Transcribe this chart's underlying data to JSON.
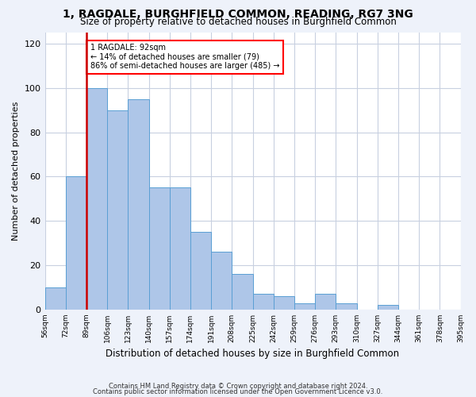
{
  "title_line1": "1, RAGDALE, BURGHFIELD COMMON, READING, RG7 3NG",
  "title_line2": "Size of property relative to detached houses in Burghfield Common",
  "xlabel": "Distribution of detached houses by size in Burghfield Common",
  "ylabel": "Number of detached properties",
  "bin_edges": [
    "56sqm",
    "72sqm",
    "89sqm",
    "106sqm",
    "123sqm",
    "140sqm",
    "157sqm",
    "174sqm",
    "191sqm",
    "208sqm",
    "225sqm",
    "242sqm",
    "259sqm",
    "276sqm",
    "293sqm",
    "310sqm",
    "327sqm",
    "344sqm",
    "361sqm",
    "378sqm",
    "395sqm"
  ],
  "bar_heights": [
    10,
    60,
    100,
    90,
    95,
    55,
    55,
    35,
    26,
    16,
    7,
    6,
    3,
    7,
    3,
    0,
    2,
    0,
    0,
    0
  ],
  "bar_color": "#aec6e8",
  "bar_edge_color": "#5a9fd4",
  "highlight_bar_index": 2,
  "highlight_color": "#cc0000",
  "ylim": [
    0,
    125
  ],
  "yticks": [
    0,
    20,
    40,
    60,
    80,
    100,
    120
  ],
  "annotation_title": "1 RAGDALE: 92sqm",
  "annotation_line1": "← 14% of detached houses are smaller (79)",
  "annotation_line2": "86% of semi-detached houses are larger (485) →",
  "footer_line1": "Contains HM Land Registry data © Crown copyright and database right 2024.",
  "footer_line2": "Contains public sector information licensed under the Open Government Licence v3.0.",
  "bg_color": "#eef2fa",
  "plot_bg_color": "#ffffff",
  "grid_color": "#c8d0e0"
}
